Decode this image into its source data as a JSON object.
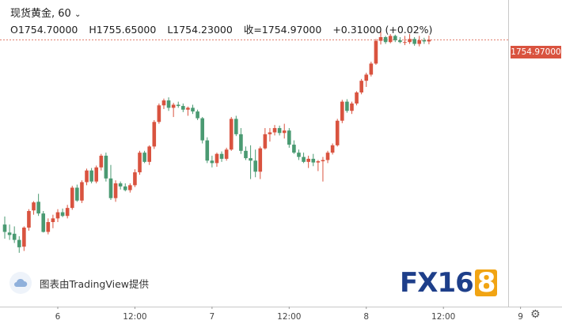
{
  "header": {
    "title_line": "现货黄金, 60",
    "open": "O1754.70000",
    "high": "H1755.65000",
    "low": "L1754.23000",
    "close": "收=1754.97000",
    "change": "+0.31000 (+0.02%)"
  },
  "price_tag": "1754.97000",
  "watermark": "图表由TradingView提供",
  "brand": {
    "fx": "FX",
    "num": "16",
    "eight": "8"
  },
  "colors": {
    "up": "#d9533f",
    "down": "#4a9a72",
    "last_line": "#d9533f"
  },
  "chart_data": {
    "type": "candlestick",
    "x_ticks": [
      {
        "bar": 11,
        "label": "6"
      },
      {
        "bar": 27,
        "label": "12:00"
      },
      {
        "bar": 43,
        "label": "7"
      },
      {
        "bar": 59,
        "label": "12:00"
      },
      {
        "bar": 75,
        "label": "8"
      },
      {
        "bar": 91,
        "label": "12:00"
      },
      {
        "bar": 107,
        "label": "9"
      }
    ],
    "last_price": 1754.97,
    "ylim": [
      1719.0,
      1756.3
    ],
    "candles": [
      [
        1724.9,
        1726.2,
        1722.6,
        1723.7
      ],
      [
        1723.6,
        1724.9,
        1722.4,
        1723.2
      ],
      [
        1723.4,
        1724.6,
        1721.9,
        1722.4
      ],
      [
        1722.4,
        1723.0,
        1720.3,
        1721.2
      ],
      [
        1721.3,
        1724.6,
        1720.6,
        1724.4
      ],
      [
        1724.4,
        1727.4,
        1723.9,
        1727.1
      ],
      [
        1727.2,
        1728.7,
        1726.5,
        1728.5
      ],
      [
        1728.6,
        1729.9,
        1726.3,
        1726.7
      ],
      [
        1726.7,
        1727.1,
        1723.6,
        1723.7
      ],
      [
        1723.7,
        1725.9,
        1723.3,
        1725.3
      ],
      [
        1725.3,
        1726.5,
        1724.3,
        1725.9
      ],
      [
        1725.9,
        1727.4,
        1725.3,
        1726.9
      ],
      [
        1726.9,
        1727.5,
        1726.1,
        1726.3
      ],
      [
        1726.3,
        1728.1,
        1725.9,
        1727.6
      ],
      [
        1727.6,
        1731.2,
        1727.3,
        1730.9
      ],
      [
        1730.9,
        1731.4,
        1728.6,
        1728.8
      ],
      [
        1728.8,
        1732.1,
        1728.4,
        1731.8
      ],
      [
        1731.8,
        1734.0,
        1731.3,
        1733.7
      ],
      [
        1733.7,
        1734.1,
        1731.6,
        1731.9
      ],
      [
        1731.9,
        1734.5,
        1731.6,
        1734.2
      ],
      [
        1734.2,
        1736.4,
        1733.7,
        1736.1
      ],
      [
        1736.1,
        1736.6,
        1731.9,
        1732.4
      ],
      [
        1732.4,
        1734.6,
        1728.9,
        1729.2
      ],
      [
        1729.2,
        1732.1,
        1728.6,
        1731.6
      ],
      [
        1731.6,
        1731.9,
        1730.6,
        1731.1
      ],
      [
        1731.1,
        1731.6,
        1730.3,
        1730.5
      ],
      [
        1730.5,
        1731.6,
        1730.1,
        1731.3
      ],
      [
        1731.3,
        1733.9,
        1731.0,
        1733.4
      ],
      [
        1733.4,
        1736.9,
        1733.0,
        1736.6
      ],
      [
        1736.6,
        1736.9,
        1734.9,
        1735.1
      ],
      [
        1735.1,
        1737.8,
        1734.6,
        1737.6
      ],
      [
        1737.6,
        1741.9,
        1737.2,
        1741.6
      ],
      [
        1741.6,
        1744.6,
        1741.3,
        1744.3
      ],
      [
        1744.3,
        1745.4,
        1743.7,
        1745.1
      ],
      [
        1745.1,
        1745.6,
        1743.4,
        1743.9
      ],
      [
        1743.9,
        1744.7,
        1742.4,
        1744.4
      ],
      [
        1744.4,
        1744.9,
        1743.9,
        1744.2
      ],
      [
        1744.2,
        1744.6,
        1743.2,
        1743.6
      ],
      [
        1743.6,
        1744.1,
        1742.6,
        1743.9
      ],
      [
        1743.9,
        1744.4,
        1742.9,
        1743.3
      ],
      [
        1743.3,
        1743.6,
        1741.9,
        1742.2
      ],
      [
        1742.2,
        1742.4,
        1738.1,
        1738.6
      ],
      [
        1738.6,
        1739.1,
        1734.9,
        1735.3
      ],
      [
        1735.3,
        1736.1,
        1734.2,
        1734.9
      ],
      [
        1734.9,
        1736.6,
        1734.3,
        1736.4
      ],
      [
        1736.4,
        1736.8,
        1735.1,
        1735.6
      ],
      [
        1735.6,
        1737.4,
        1735.3,
        1737.1
      ],
      [
        1737.1,
        1742.4,
        1736.9,
        1742.1
      ],
      [
        1742.1,
        1742.6,
        1739.3,
        1739.6
      ],
      [
        1739.6,
        1740.6,
        1736.4,
        1736.9
      ],
      [
        1736.9,
        1737.6,
        1735.4,
        1735.7
      ],
      [
        1735.7,
        1737.8,
        1732.3,
        1735.3
      ],
      [
        1735.3,
        1737.1,
        1732.6,
        1733.5
      ],
      [
        1733.5,
        1737.6,
        1732.3,
        1737.3
      ],
      [
        1737.3,
        1740.6,
        1737.1,
        1739.6
      ],
      [
        1739.6,
        1740.6,
        1738.4,
        1739.9
      ],
      [
        1739.9,
        1741.1,
        1739.4,
        1740.6
      ],
      [
        1740.6,
        1741.0,
        1739.4,
        1739.8
      ],
      [
        1739.8,
        1741.3,
        1738.9,
        1740.2
      ],
      [
        1740.2,
        1740.6,
        1737.4,
        1737.9
      ],
      [
        1737.9,
        1738.6,
        1736.4,
        1736.6
      ],
      [
        1736.6,
        1737.1,
        1735.4,
        1735.9
      ],
      [
        1735.9,
        1736.6,
        1734.9,
        1735.1
      ],
      [
        1735.1,
        1736.1,
        1734.1,
        1735.6
      ],
      [
        1735.6,
        1736.4,
        1734.4,
        1735.0
      ],
      [
        1735.0,
        1735.4,
        1733.6,
        1735.2
      ],
      [
        1735.2,
        1735.9,
        1731.9,
        1735.4
      ],
      [
        1735.4,
        1736.9,
        1734.9,
        1736.6
      ],
      [
        1736.6,
        1738.1,
        1736.3,
        1737.8
      ],
      [
        1737.8,
        1742.1,
        1737.6,
        1741.8
      ],
      [
        1741.8,
        1745.2,
        1741.4,
        1744.9
      ],
      [
        1744.9,
        1745.3,
        1743.1,
        1743.4
      ],
      [
        1743.4,
        1744.9,
        1742.9,
        1744.6
      ],
      [
        1744.6,
        1746.6,
        1744.3,
        1746.4
      ],
      [
        1746.4,
        1748.6,
        1746.1,
        1748.3
      ],
      [
        1748.3,
        1749.6,
        1747.3,
        1749.3
      ],
      [
        1749.3,
        1751.4,
        1749.0,
        1751.1
      ],
      [
        1751.1,
        1755.1,
        1750.9,
        1754.8
      ],
      [
        1754.8,
        1756.3,
        1754.2,
        1755.4
      ],
      [
        1755.4,
        1755.6,
        1754.3,
        1754.6
      ],
      [
        1754.6,
        1755.9,
        1754.4,
        1755.6
      ],
      [
        1755.6,
        1755.8,
        1754.6,
        1754.9
      ],
      [
        1754.9,
        1755.4,
        1754.4,
        1754.6
      ],
      [
        1754.6,
        1755.6,
        1754.1,
        1754.6
      ],
      [
        1754.6,
        1755.9,
        1754.3,
        1755.1
      ],
      [
        1755.1,
        1755.4,
        1754.0,
        1754.3
      ],
      [
        1754.3,
        1755.6,
        1753.9,
        1754.9
      ],
      [
        1754.9,
        1755.3,
        1754.3,
        1754.7
      ],
      [
        1754.7,
        1755.65,
        1754.23,
        1754.97
      ]
    ]
  }
}
